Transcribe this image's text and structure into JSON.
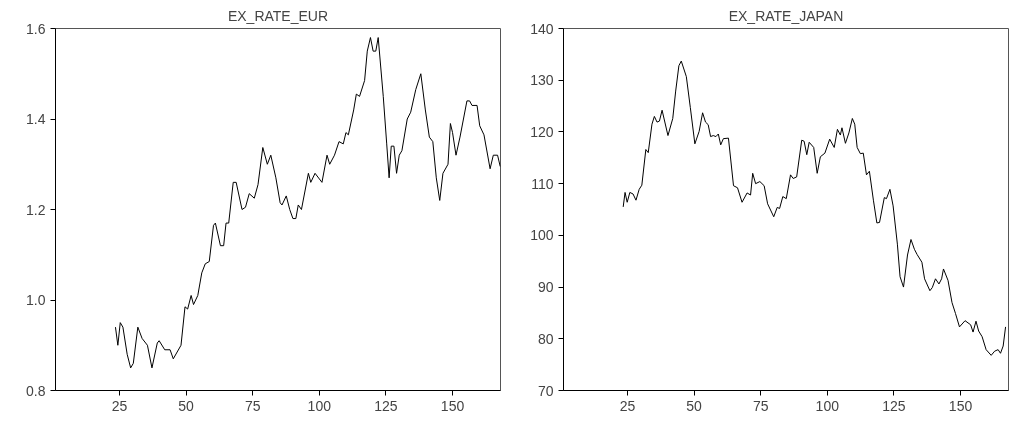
{
  "chart_data": [
    {
      "type": "line",
      "title": "EX_RATE_EUR",
      "xlim": [
        1,
        168
      ],
      "xticks": [
        25,
        50,
        75,
        100,
        125,
        150
      ],
      "ylim": [
        0.8,
        1.6
      ],
      "yticks": [
        0.8,
        {
          "value": 1.0,
          "label": "1.0"
        },
        1.2,
        1.4,
        1.6
      ],
      "series": [
        {
          "color": "#000000",
          "x": [
            23.5,
            24.4,
            25.3,
            26.3,
            27.9,
            29.2,
            30.2,
            31.9,
            33.5,
            35.5,
            37.2,
            39.2,
            39.9,
            42,
            44,
            45.2,
            48.1,
            49.6,
            50.6,
            51.9,
            52.8,
            54.4,
            55.9,
            57.2,
            58.7,
            60.3,
            61,
            62.9,
            64.1,
            65,
            66,
            67.7,
            68.8,
            71,
            72.3,
            73.7,
            75.6,
            77,
            78.8,
            80.5,
            81.8,
            83.7,
            85.3,
            86,
            87.6,
            88.9,
            90.1,
            91.2,
            92.1,
            93.3,
            95.9,
            96.8,
            98.4,
            101,
            102.9,
            103.9,
            105.7,
            107.4,
            109,
            110,
            110.9,
            112.9,
            113.9,
            115.1,
            117,
            118,
            119.2,
            120.2,
            121.2,
            122.1,
            124,
            125.3,
            126.2,
            127,
            128,
            129,
            130,
            131,
            133,
            134.3,
            136.2,
            138.1,
            139.8,
            141.3,
            142.6,
            143.9,
            145.2,
            146.4,
            148.3,
            149.2,
            150,
            151.3,
            152.8,
            155.4,
            156.4,
            157.3,
            159.2,
            160.2,
            161.8,
            164.1,
            165.3,
            166.9,
            167.9
          ],
          "values": [
            0.94,
            0.9,
            0.95,
            0.94,
            0.88,
            0.85,
            0.86,
            0.94,
            0.915,
            0.9,
            0.85,
            0.905,
            0.91,
            0.89,
            0.89,
            0.87,
            0.9,
            0.985,
            0.98,
            1.01,
            0.99,
            1.01,
            1.06,
            1.08,
            1.085,
            1.165,
            1.17,
            1.12,
            1.12,
            1.17,
            1.17,
            1.26,
            1.26,
            1.2,
            1.205,
            1.235,
            1.225,
            1.255,
            1.337,
            1.3,
            1.32,
            1.27,
            1.215,
            1.21,
            1.23,
            1.2,
            1.18,
            1.18,
            1.21,
            1.2,
            1.28,
            1.26,
            1.28,
            1.26,
            1.32,
            1.3,
            1.32,
            1.35,
            1.345,
            1.37,
            1.365,
            1.42,
            1.455,
            1.45,
            1.485,
            1.55,
            1.58,
            1.55,
            1.55,
            1.58,
            1.45,
            1.345,
            1.27,
            1.34,
            1.34,
            1.28,
            1.32,
            1.33,
            1.4,
            1.415,
            1.465,
            1.5,
            1.42,
            1.36,
            1.35,
            1.27,
            1.22,
            1.28,
            1.3,
            1.39,
            1.37,
            1.32,
            1.36,
            1.44,
            1.44,
            1.43,
            1.43,
            1.385,
            1.365,
            1.29,
            1.32,
            1.32,
            1.295
          ]
        }
      ]
    },
    {
      "type": "line",
      "title": "EX_RATE_JAPAN",
      "xlim": [
        1,
        168
      ],
      "xticks": [
        25,
        50,
        75,
        100,
        125,
        150
      ],
      "ylim": [
        70,
        140
      ],
      "yticks": [
        70,
        80,
        90,
        100,
        110,
        120,
        130,
        140
      ],
      "series": [
        {
          "color": "#000000",
          "x": [
            23.4,
            24.1,
            24.9,
            25.9,
            27.1,
            28.2,
            29.4,
            30.4,
            31.9,
            32.8,
            34.2,
            35.1,
            36.1,
            37,
            38,
            40.2,
            42,
            43.1,
            44.3,
            45.2,
            47.1,
            48.6,
            50.3,
            51.9,
            53.2,
            54.3,
            55.3,
            56.2,
            57.2,
            58.2,
            59.1,
            60,
            61,
            62.9,
            64.8,
            66.3,
            68,
            69.9,
            71.2,
            72,
            73.1,
            74.7,
            76.3,
            77.6,
            79.9,
            81.2,
            82.1,
            83.3,
            84.6,
            86.2,
            87.2,
            88.5,
            90.4,
            91.3,
            92.3,
            93.2,
            94.9,
            96.2,
            97.4,
            99.1,
            100.9,
            102.6,
            103.8,
            104.9,
            105.5,
            106.8,
            108.1,
            109.4,
            110.3,
            111.2,
            112.4,
            113.5,
            114.7,
            115.8,
            117.3,
            118.6,
            119.6,
            121.4,
            122.2,
            123.5,
            124.7,
            126.3,
            127.3,
            128.6,
            130.1,
            131.4,
            132.7,
            133.7,
            135.5,
            136.5,
            138.5,
            139.4,
            140.6,
            141.9,
            142.9,
            143.6,
            145.3,
            146.8,
            148.1,
            149.6,
            151.7,
            153.8,
            154.7,
            155.8,
            156.8,
            158.1,
            159.6,
            161.5,
            162.8,
            164.1,
            165,
            166,
            166.9
          ],
          "values": [
            105.5,
            108.3,
            106.4,
            108.3,
            108,
            106.8,
            108.9,
            109.7,
            116.6,
            116,
            121.5,
            123,
            121.9,
            122.1,
            124.2,
            119.3,
            122.6,
            127.9,
            132.8,
            133.7,
            130.7,
            124.7,
            117.7,
            120.1,
            123.7,
            121.9,
            121.4,
            119.1,
            119.3,
            119.1,
            119.6,
            117.5,
            118.7,
            118.8,
            109.6,
            109.2,
            106.4,
            108.2,
            107.8,
            112,
            110,
            110.4,
            109.6,
            106.1,
            103.6,
            105.4,
            105.2,
            107.5,
            107.1,
            111.7,
            111,
            111.3,
            118.4,
            118.2,
            115.6,
            118,
            117,
            112,
            115.2,
            115.9,
            118.6,
            117,
            120.5,
            119.4,
            120.8,
            117.8,
            119.8,
            122.6,
            121.5,
            117,
            115.8,
            115.9,
            111.7,
            112.4,
            106.8,
            102.4,
            102.5,
            107.3,
            107.1,
            108.9,
            105.7,
            98.3,
            92,
            90,
            96.2,
            99.2,
            97.3,
            96.3,
            94.8,
            91.6,
            89.3,
            89.9,
            91.6,
            90.6,
            91.6,
            93.5,
            91.3,
            87,
            84.9,
            82.3,
            83.5,
            82.7,
            81.3,
            83.4,
            81.5,
            80.4,
            77.9,
            76.8,
            77.6,
            77.9,
            77.2,
            78.6,
            82.3
          ]
        }
      ]
    }
  ]
}
